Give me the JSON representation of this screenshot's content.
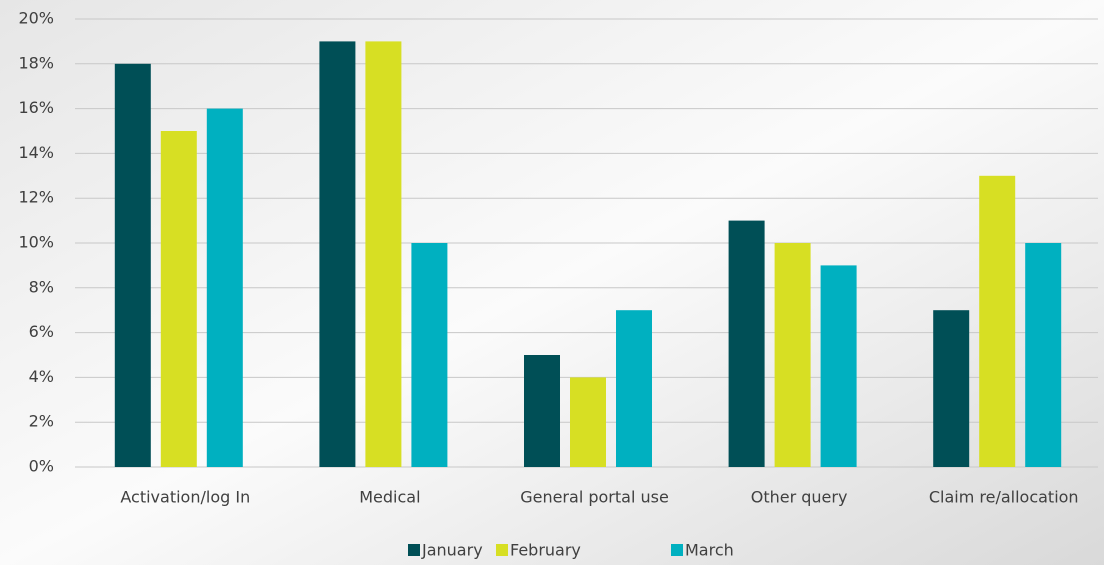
{
  "chart_data": {
    "type": "bar",
    "categories": [
      "Activation/log In",
      "Medical",
      "General portal use",
      "Other query",
      "Claim re/allocation"
    ],
    "series": [
      {
        "name": "January",
        "color": "#004f56",
        "values": [
          18,
          19,
          5,
          11,
          7
        ]
      },
      {
        "name": "February",
        "color": "#d7df23",
        "values": [
          15,
          19,
          4,
          10,
          13
        ]
      },
      {
        "name": "March",
        "color": "#00b0c0",
        "values": [
          16,
          10,
          7,
          9,
          10
        ]
      }
    ],
    "ylim": [
      0,
      20
    ],
    "yticks": [
      {
        "value": 0,
        "label": "0%"
      },
      {
        "value": 2,
        "label": "2%"
      },
      {
        "value": 4,
        "label": "4%"
      },
      {
        "value": 6,
        "label": "6%"
      },
      {
        "value": 8,
        "label": "8%"
      },
      {
        "value": 10,
        "label": "10%"
      },
      {
        "value": 12,
        "label": "12%"
      },
      {
        "value": 14,
        "label": "14%"
      },
      {
        "value": 16,
        "label": "16%"
      },
      {
        "value": 18,
        "label": "18%"
      },
      {
        "value": 20,
        "label": "20%"
      }
    ],
    "grid": true,
    "legend": "bottom"
  }
}
